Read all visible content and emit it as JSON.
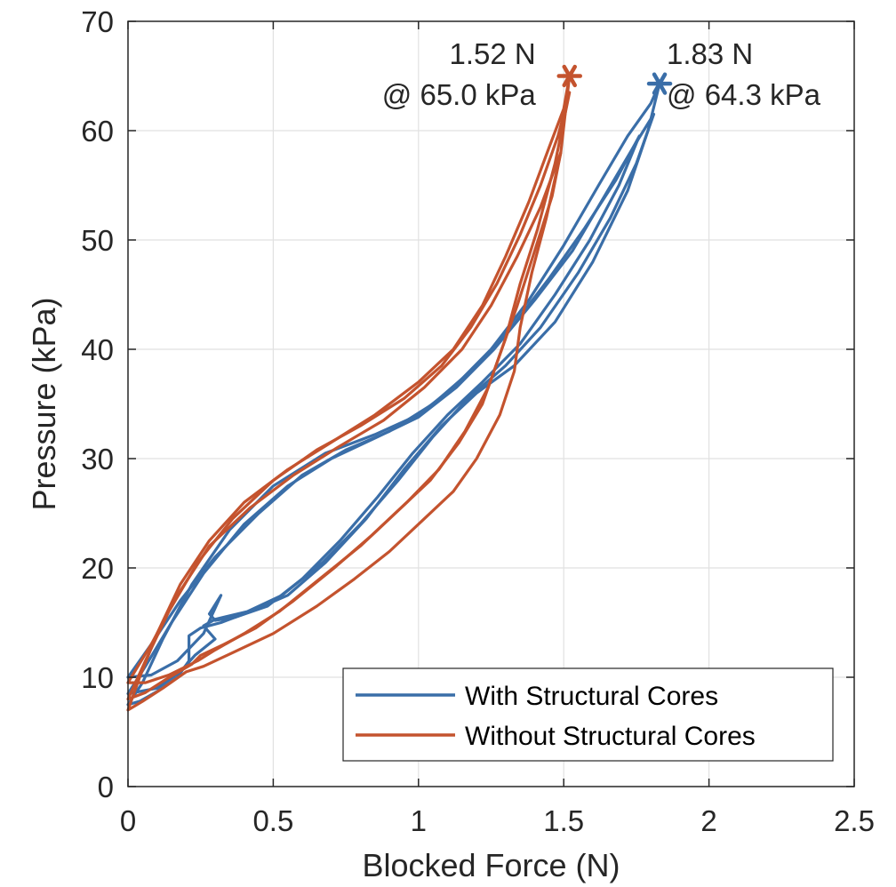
{
  "chart_data": {
    "type": "line",
    "xlabel": "Blocked Force (N)",
    "ylabel": "Pressure (kPa)",
    "xlim": [
      0,
      2.5
    ],
    "ylim": [
      0,
      70
    ],
    "xticks": [
      0,
      0.5,
      1,
      1.5,
      2,
      2.5
    ],
    "xtick_labels": [
      "0",
      "0.5",
      "1",
      "1.5",
      "2",
      "2.5"
    ],
    "yticks": [
      0,
      10,
      20,
      30,
      40,
      50,
      60,
      70
    ],
    "ytick_labels": [
      "0",
      "10",
      "20",
      "30",
      "40",
      "50",
      "60",
      "70"
    ],
    "grid": true,
    "legend_position": "bottom-right",
    "series": [
      {
        "name": "With Structural Cores",
        "color": "#3a6ea8",
        "cycles": [
          {
            "x": [
              0.0,
              0.05,
              0.12,
              0.22,
              0.35,
              0.5,
              0.68,
              0.85,
              1.0,
              1.12,
              1.25,
              1.38,
              1.5,
              1.62,
              1.72,
              1.8,
              1.83,
              1.79,
              1.72,
              1.6,
              1.47,
              1.33,
              1.2,
              1.08,
              0.95,
              0.82,
              0.68,
              0.55,
              0.42,
              0.32,
              0.25,
              0.21,
              0.21,
              0.17,
              0.1,
              0.04,
              0.0
            ],
            "y": [
              7.5,
              9.5,
              13.5,
              18.5,
              23.5,
              27.5,
              30.5,
              32.2,
              34.0,
              36.5,
              40.0,
              44.5,
              49.5,
              55.0,
              59.5,
              62.5,
              64.3,
              60.0,
              54.5,
              48.0,
              42.5,
              38.5,
              36.0,
              33.0,
              29.0,
              24.5,
              20.5,
              17.5,
              16.0,
              15.0,
              14.5,
              13.8,
              11.5,
              10.0,
              8.7,
              7.8,
              7.5
            ]
          },
          {
            "x": [
              0.0,
              0.06,
              0.15,
              0.26,
              0.4,
              0.55,
              0.7,
              0.86,
              1.0,
              1.13,
              1.26,
              1.4,
              1.53,
              1.64,
              1.74,
              1.81,
              1.75,
              1.66,
              1.55,
              1.42,
              1.3,
              1.17,
              1.05,
              0.93,
              0.8,
              0.67,
              0.53,
              0.41,
              0.3,
              0.26,
              0.3,
              0.23,
              0.18,
              0.1,
              0.0
            ],
            "y": [
              8.5,
              11.0,
              15.0,
              19.5,
              24.0,
              27.5,
              30.0,
              32.0,
              33.8,
              36.5,
              40.0,
              44.5,
              49.0,
              54.0,
              58.5,
              61.5,
              57.0,
              52.0,
              47.0,
              42.0,
              38.5,
              35.5,
              32.0,
              28.0,
              24.0,
              20.5,
              17.5,
              16.0,
              15.3,
              14.7,
              13.5,
              12.0,
              10.5,
              9.0,
              8.5
            ]
          },
          {
            "x": [
              0.0,
              0.08,
              0.18,
              0.3,
              0.45,
              0.6,
              0.75,
              0.9,
              1.05,
              1.18,
              1.32,
              1.45,
              1.57,
              1.68,
              1.76,
              1.69,
              1.59,
              1.47,
              1.35,
              1.22,
              1.1,
              0.98,
              0.86,
              0.73,
              0.6,
              0.48,
              0.37,
              0.3,
              0.28,
              0.32,
              0.26,
              0.17,
              0.08,
              0.0
            ],
            "y": [
              10.0,
              13.0,
              17.0,
              21.0,
              25.0,
              28.5,
              30.8,
              32.5,
              35.0,
              38.0,
              42.0,
              46.5,
              51.0,
              55.5,
              59.5,
              55.0,
              50.0,
              45.0,
              40.5,
              37.0,
              34.0,
              30.5,
              26.5,
              22.5,
              19.0,
              16.5,
              15.5,
              15.2,
              15.8,
              17.5,
              14.0,
              11.5,
              10.2,
              10.0
            ]
          }
        ],
        "peak": {
          "x": 1.83,
          "y": 64.3
        },
        "annotation": [
          "1.83 N",
          "@ 64.3 kPa"
        ]
      },
      {
        "name": "Without Structural Cores",
        "color": "#c4532e",
        "cycles": [
          {
            "x": [
              0.0,
              0.04,
              0.1,
              0.18,
              0.28,
              0.4,
              0.55,
              0.7,
              0.85,
              1.0,
              1.12,
              1.22,
              1.3,
              1.38,
              1.45,
              1.5,
              1.52,
              1.49,
              1.44,
              1.39,
              1.35,
              1.33,
              1.28,
              1.2,
              1.12,
              1.02,
              0.9,
              0.78,
              0.65,
              0.5,
              0.38,
              0.26,
              0.2,
              0.12,
              0.05,
              0.0
            ],
            "y": [
              7.0,
              10.0,
              14.0,
              18.5,
              22.5,
              26.0,
              29.0,
              31.5,
              34.0,
              37.0,
              40.0,
              44.0,
              48.5,
              53.5,
              58.5,
              62.0,
              65.0,
              58.0,
              52.0,
              47.0,
              42.0,
              38.0,
              34.0,
              30.0,
              27.0,
              24.5,
              21.5,
              19.0,
              16.5,
              14.0,
              12.5,
              11.0,
              10.5,
              9.0,
              7.8,
              7.0
            ]
          },
          {
            "x": [
              0.0,
              0.06,
              0.14,
              0.24,
              0.36,
              0.5,
              0.65,
              0.8,
              0.95,
              1.08,
              1.18,
              1.27,
              1.35,
              1.42,
              1.48,
              1.52,
              1.47,
              1.41,
              1.35,
              1.3,
              1.24,
              1.16,
              1.07,
              0.96,
              0.84,
              0.71,
              0.57,
              0.44,
              0.33,
              0.25,
              0.22,
              0.13,
              0.06,
              0.0
            ],
            "y": [
              8.0,
              11.5,
              16.0,
              20.5,
              24.5,
              28.0,
              30.8,
              33.0,
              35.5,
              38.5,
              42.0,
              46.0,
              50.5,
              55.0,
              59.5,
              63.5,
              57.0,
              51.0,
              46.0,
              41.0,
              36.5,
              32.5,
              29.0,
              26.0,
              23.0,
              20.0,
              17.0,
              14.5,
              13.0,
              12.0,
              11.2,
              9.8,
              8.6,
              8.0
            ]
          },
          {
            "x": [
              0.0,
              0.08,
              0.17,
              0.28,
              0.42,
              0.57,
              0.72,
              0.88,
              1.02,
              1.15,
              1.25,
              1.34,
              1.42,
              1.49,
              1.46,
              1.4,
              1.34,
              1.28,
              1.22,
              1.14,
              1.04,
              0.92,
              0.8,
              0.66,
              0.52,
              0.4,
              0.3,
              0.24,
              0.14,
              0.06,
              0.0
            ],
            "y": [
              9.5,
              13.0,
              17.5,
              22.0,
              25.5,
              28.5,
              31.0,
              33.5,
              36.5,
              40.0,
              44.0,
              48.5,
              53.0,
              58.0,
              54.0,
              49.0,
              44.0,
              39.5,
              35.0,
              31.5,
              28.0,
              25.0,
              22.0,
              19.0,
              16.0,
              14.0,
              12.5,
              11.5,
              10.2,
              9.5,
              9.5
            ]
          }
        ],
        "peak": {
          "x": 1.52,
          "y": 65.0
        },
        "annotation": [
          "1.52 N",
          "@ 65.0 kPa"
        ]
      }
    ]
  }
}
